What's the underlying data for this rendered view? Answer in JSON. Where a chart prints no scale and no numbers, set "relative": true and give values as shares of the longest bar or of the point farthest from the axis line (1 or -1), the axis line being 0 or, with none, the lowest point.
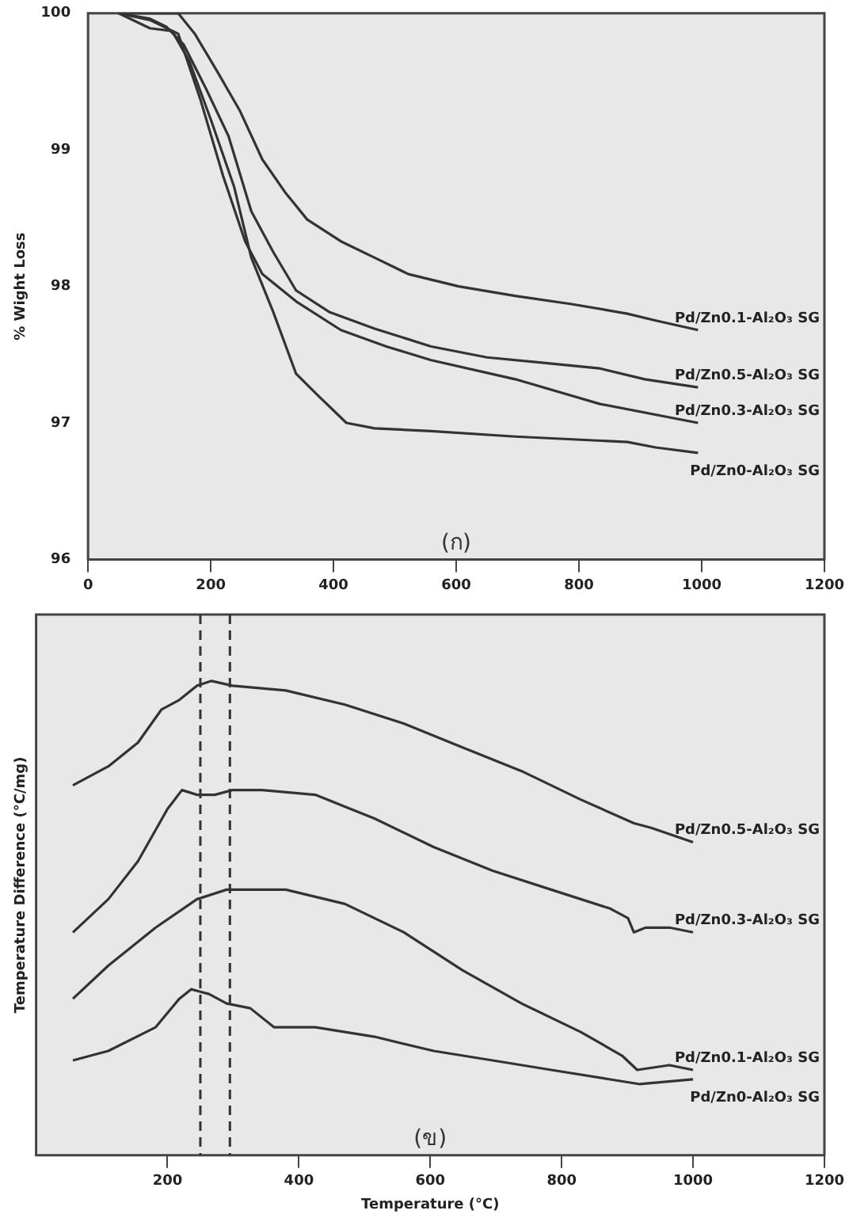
{
  "chart_data": [
    {
      "type": "line",
      "ylabel": "% Wight Loss",
      "xlim": [
        0,
        1200
      ],
      "xticks": [
        0,
        200,
        400,
        600,
        800,
        1000,
        1200
      ],
      "ylim": [
        96,
        100
      ],
      "yticks": [
        96,
        97,
        98,
        99,
        100
      ],
      "marker": "none",
      "line_style": "solid",
      "annotations": [
        "(ก)"
      ],
      "series": [
        {
          "name": "Pd/Zn0.1-Al₂O₃ SG",
          "color": "#333333",
          "x": [
            50,
            147,
            174,
            211,
            247,
            284,
            321,
            357,
            412,
            467,
            522,
            604,
            696,
            788,
            879,
            925,
            994
          ],
          "values": [
            100,
            100,
            99.85,
            99.57,
            99.29,
            98.93,
            98.69,
            98.49,
            98.33,
            98.21,
            98.09,
            98.0,
            97.93,
            97.87,
            97.8,
            97.75,
            97.68
          ]
        },
        {
          "name": "Pd/Zn0.5-Al₂O₃ SG",
          "color": "#333333",
          "x": [
            50,
            101,
            128,
            156,
            192,
            229,
            266,
            302,
            339,
            394,
            467,
            559,
            650,
            742,
            833,
            907,
            994
          ],
          "values": [
            100,
            99.96,
            99.9,
            99.77,
            99.45,
            99.1,
            98.55,
            98.25,
            97.97,
            97.81,
            97.69,
            97.56,
            97.48,
            97.44,
            97.4,
            97.32,
            97.26
          ]
        },
        {
          "name": "Pd/Zn0.3-Al₂O₃ SG",
          "color": "#333333",
          "x": [
            50,
            101,
            147,
            183,
            220,
            256,
            284,
            339,
            412,
            486,
            559,
            696,
            833,
            994
          ],
          "values": [
            100,
            99.95,
            99.85,
            99.37,
            98.81,
            98.33,
            98.09,
            97.89,
            97.68,
            97.56,
            97.46,
            97.32,
            97.14,
            97.0
          ]
        },
        {
          "name": "Pd/Zn0-Al₂O₃ SG",
          "color": "#333333",
          "x": [
            50,
            101,
            137,
            165,
            201,
            238,
            266,
            302,
            339,
            375,
            421,
            467,
            559,
            696,
            879,
            925,
            994
          ],
          "values": [
            100,
            99.89,
            99.87,
            99.65,
            99.21,
            98.73,
            98.21,
            97.81,
            97.36,
            97.2,
            97.0,
            96.96,
            96.94,
            96.9,
            96.86,
            96.82,
            96.78
          ]
        }
      ]
    },
    {
      "type": "line",
      "xlabel": "Temperature (°C)",
      "ylabel": "Temperature Difference (°C/mg)",
      "xlim": [
        0,
        1200
      ],
      "xticks": [
        200,
        400,
        600,
        800,
        1000,
        1200
      ],
      "relative": true,
      "tick_labels": "x",
      "marker": "none",
      "line_style": "solid",
      "annotations": [
        "(ข)"
      ],
      "ref_lines": [
        {
          "axis": "x",
          "value": 250,
          "color": "#333333",
          "line_style": "dashed"
        },
        {
          "axis": "x",
          "value": 295,
          "color": "#333333",
          "line_style": "dashed"
        }
      ],
      "series": [
        {
          "name": "Pd/Zn0.5-Al₂O₃ SG",
          "color": "#333333",
          "x": [
            56,
            110,
            155,
            191,
            218,
            245,
            267,
            299,
            380,
            470,
            560,
            649,
            739,
            829,
            910,
            937,
            1000
          ],
          "values": [
            0.78,
            0.82,
            0.87,
            0.94,
            0.96,
            0.99,
            1,
            0.99,
            0.98,
            0.95,
            0.91,
            0.86,
            0.81,
            0.75,
            0.7,
            0.69,
            0.66
          ]
        },
        {
          "name": "Pd/Zn0.3-Al₂O₃ SG",
          "color": "#333333",
          "x": [
            56,
            110,
            155,
            200,
            222,
            245,
            272,
            299,
            344,
            425,
            515,
            605,
            695,
            784,
            874,
            901,
            910,
            928,
            964,
            1000
          ],
          "values": [
            0.47,
            0.54,
            0.62,
            0.73,
            0.77,
            0.76,
            0.76,
            0.77,
            0.77,
            0.76,
            0.71,
            0.65,
            0.6,
            0.56,
            0.52,
            0.5,
            0.47,
            0.48,
            0.48,
            0.47
          ]
        },
        {
          "name": "Pd/Zn0.1-Al₂O₃ SG",
          "color": "#333333",
          "x": [
            56,
            110,
            182,
            245,
            290,
            380,
            470,
            560,
            649,
            739,
            829,
            892,
            915,
            964,
            1000
          ],
          "values": [
            0.33,
            0.4,
            0.48,
            0.54,
            0.56,
            0.56,
            0.53,
            0.47,
            0.39,
            0.32,
            0.26,
            0.21,
            0.18,
            0.19,
            0.18
          ]
        },
        {
          "name": "Pd/Zn0-Al₂O₃ SG",
          "color": "#333333",
          "x": [
            56,
            110,
            182,
            218,
            236,
            263,
            290,
            326,
            362,
            425,
            515,
            605,
            695,
            784,
            874,
            919,
            1000
          ],
          "values": [
            0.2,
            0.22,
            0.27,
            0.33,
            0.35,
            0.34,
            0.32,
            0.31,
            0.27,
            0.27,
            0.25,
            0.22,
            0.2,
            0.18,
            0.16,
            0.15,
            0.16
          ]
        }
      ]
    }
  ]
}
